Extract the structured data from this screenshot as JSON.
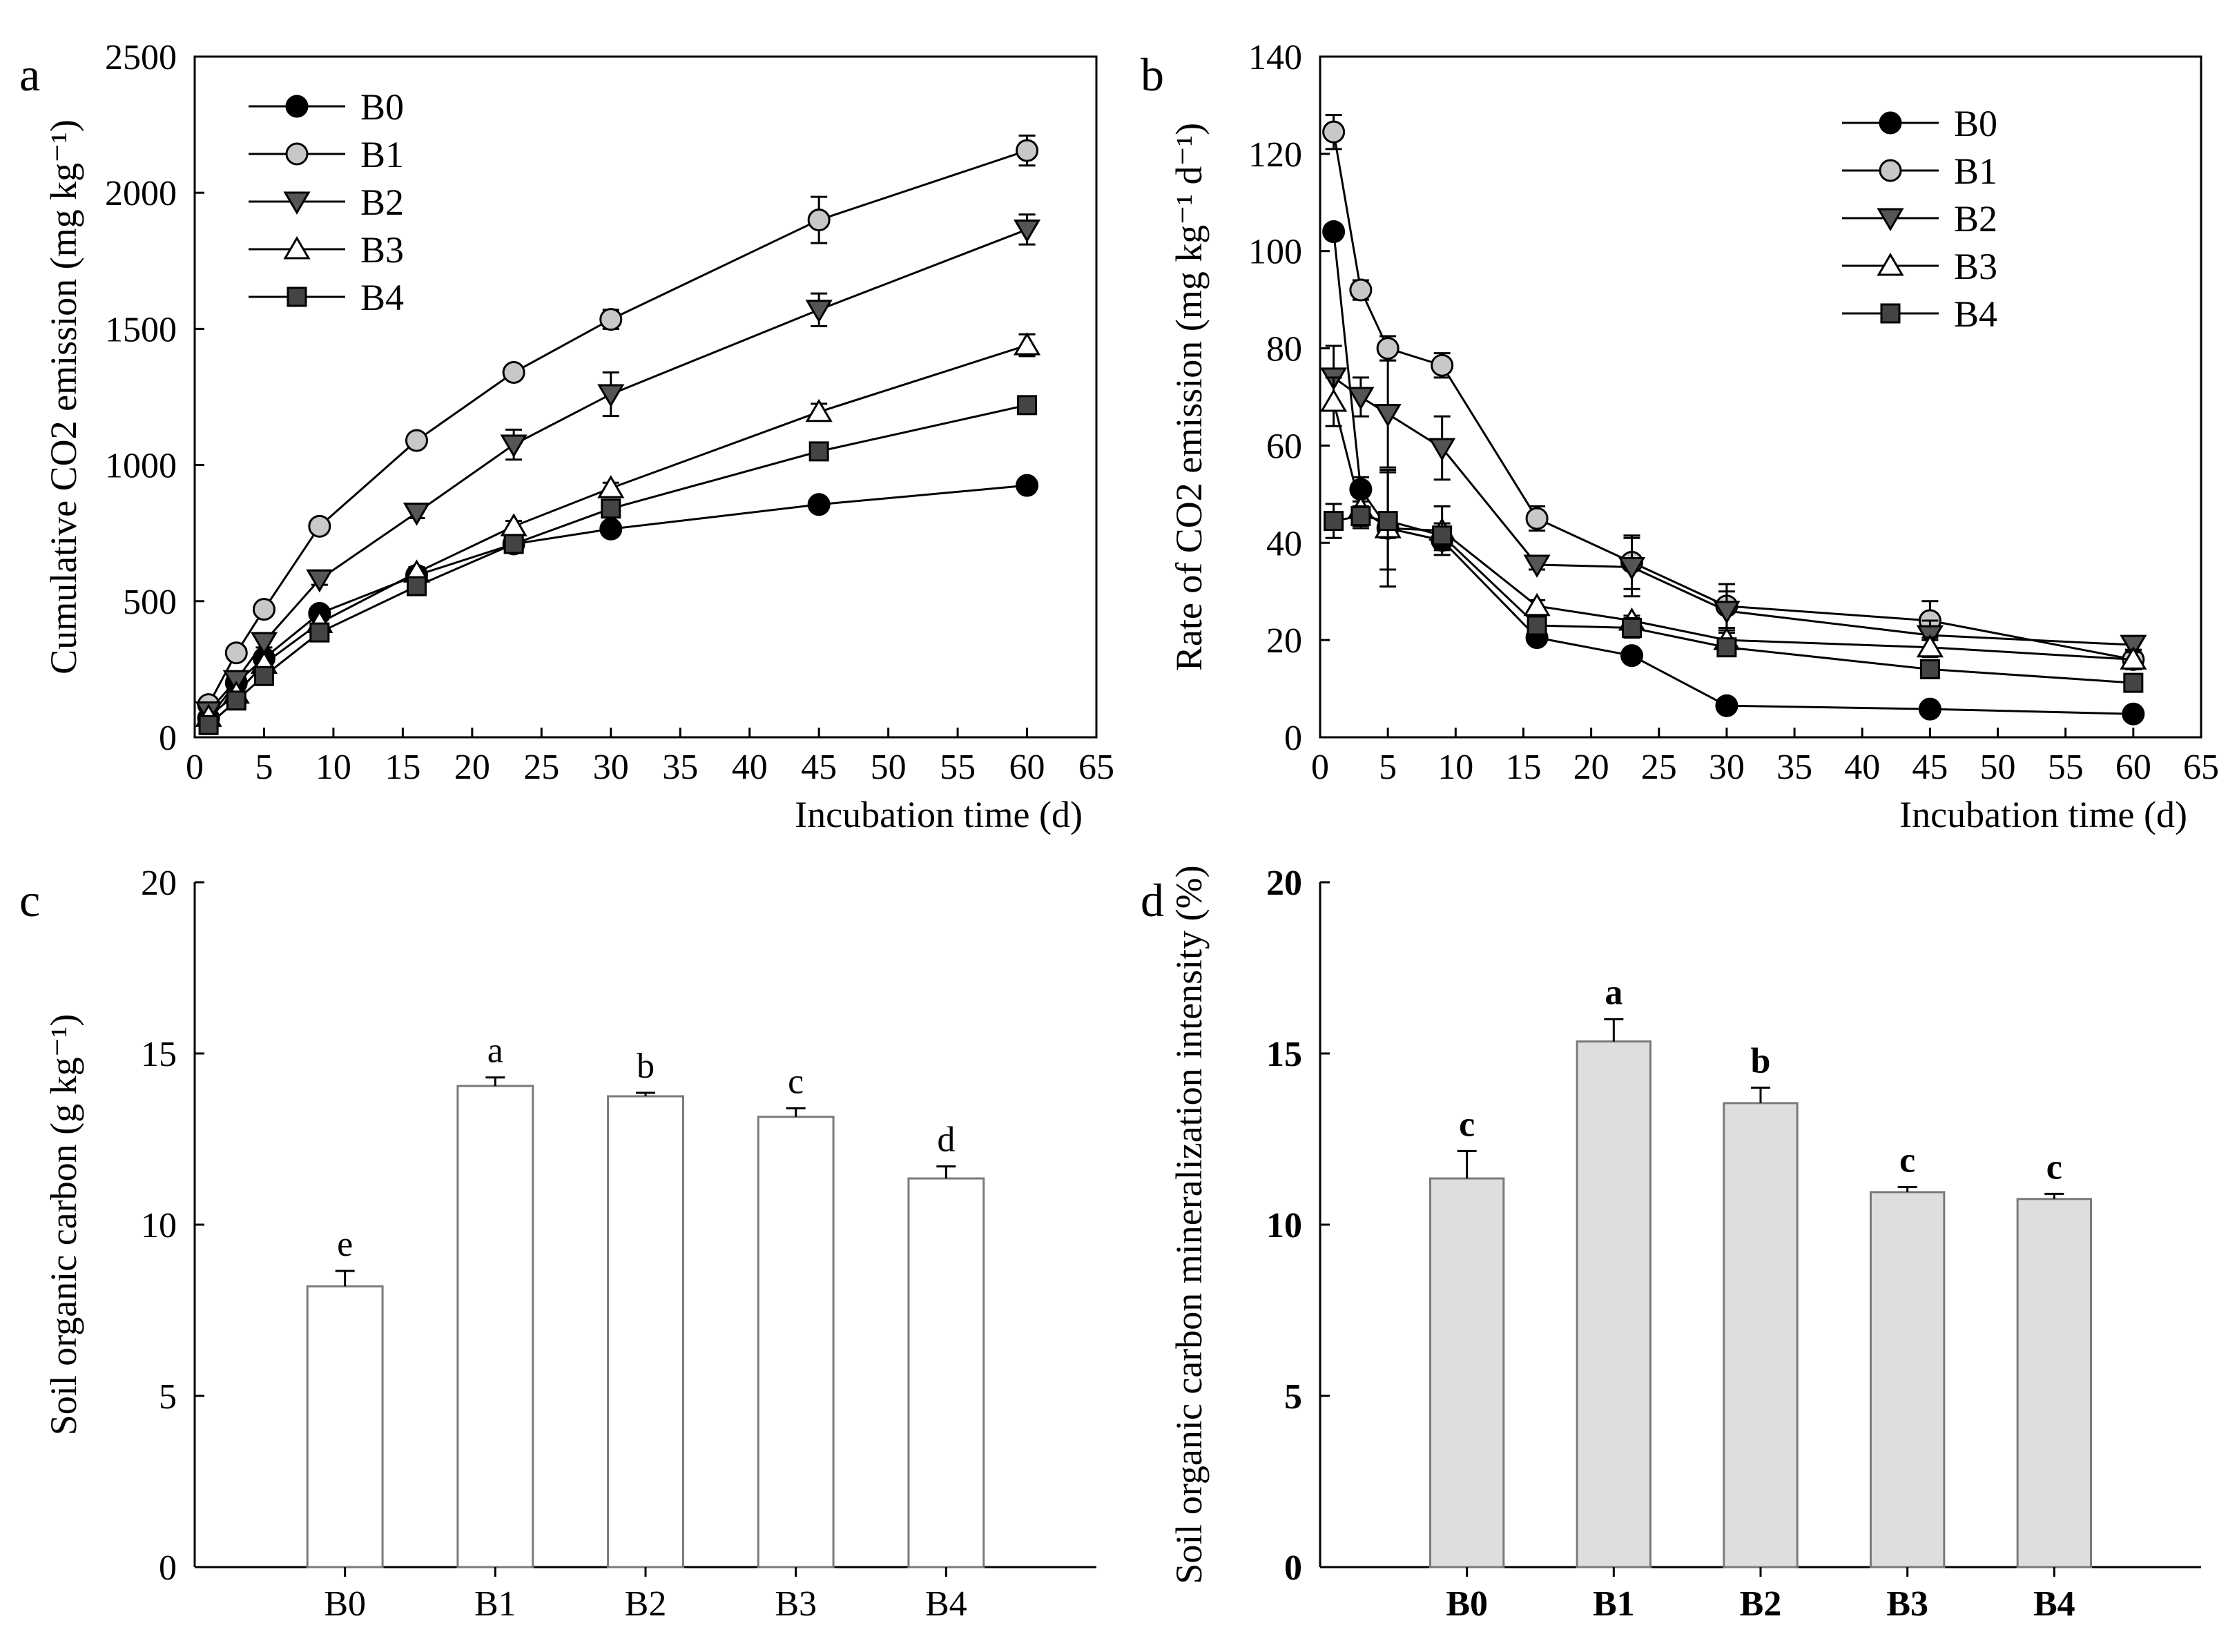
{
  "chart_data": [
    {
      "panel": "a",
      "type": "line",
      "ylabel": "Cumulative CO2 emission (mg kg⁻¹)",
      "xlabel": "Incubation time (d)",
      "xlim": [
        0,
        65
      ],
      "ylim": [
        0,
        2500
      ],
      "xticks": [
        0,
        5,
        10,
        15,
        20,
        25,
        30,
        35,
        40,
        45,
        50,
        55,
        60,
        65
      ],
      "yticks": [
        0,
        500,
        1000,
        1500,
        2000,
        2500
      ],
      "legend_position": "top-left",
      "x": [
        1,
        3,
        5,
        9,
        16,
        23,
        30,
        45,
        60
      ],
      "series": [
        {
          "name": "B0",
          "marker": "circle",
          "fill": "#000000",
          "values": [
            70,
            200,
            290,
            455,
            595,
            710,
            765,
            855,
            925
          ],
          "errors": [
            10,
            15,
            15,
            20,
            20,
            25,
            20,
            20,
            20
          ]
        },
        {
          "name": "B1",
          "marker": "circle",
          "fill": "#c8c8c8",
          "values": [
            120,
            310,
            470,
            775,
            1090,
            1340,
            1535,
            1900,
            2155
          ],
          "errors": [
            15,
            15,
            20,
            25,
            20,
            20,
            35,
            85,
            55
          ]
        },
        {
          "name": "B2",
          "marker": "triangle-down",
          "fill": "#555555",
          "values": [
            95,
            210,
            350,
            580,
            825,
            1075,
            1260,
            1570,
            1865
          ],
          "errors": [
            10,
            20,
            20,
            20,
            20,
            55,
            80,
            60,
            55
          ]
        },
        {
          "name": "B3",
          "marker": "triangle-up",
          "fill": "#ffffff",
          "values": [
            75,
            160,
            270,
            420,
            605,
            775,
            915,
            1195,
            1440
          ],
          "errors": [
            10,
            15,
            20,
            20,
            20,
            20,
            20,
            30,
            40
          ]
        },
        {
          "name": "B4",
          "marker": "square",
          "fill": "#444444",
          "values": [
            45,
            135,
            225,
            385,
            555,
            710,
            840,
            1050,
            1220
          ],
          "errors": [
            10,
            15,
            20,
            20,
            20,
            20,
            20,
            20,
            20
          ]
        }
      ]
    },
    {
      "panel": "b",
      "type": "line",
      "ylabel": "Rate of CO2 emission (mg kg⁻¹ d⁻¹)",
      "xlabel": "Incubation time (d)",
      "xlim": [
        0,
        65
      ],
      "ylim": [
        0,
        140
      ],
      "xticks": [
        0,
        5,
        10,
        15,
        20,
        25,
        30,
        35,
        40,
        45,
        50,
        55,
        60,
        65
      ],
      "yticks": [
        0,
        20,
        40,
        60,
        80,
        100,
        120,
        140
      ],
      "legend_position": "top-right",
      "x": [
        1,
        3,
        5,
        9,
        16,
        23,
        30,
        45,
        60
      ],
      "series": [
        {
          "name": "B0",
          "marker": "circle",
          "fill": "#000000",
          "values": [
            104,
            51,
            43,
            40.5,
            20.5,
            16.8,
            6.5,
            5.8,
            4.8
          ],
          "errors": [
            1.5,
            2.5,
            2,
            2,
            1.2,
            1,
            1,
            0.8,
            0.6
          ]
        },
        {
          "name": "B1",
          "marker": "circle",
          "fill": "#c8c8c8",
          "values": [
            124.5,
            92,
            80,
            76.5,
            45,
            36,
            27,
            24,
            16
          ],
          "errors": [
            3.5,
            2,
            2.5,
            2.5,
            2.5,
            5.5,
            4.5,
            4,
            2
          ]
        },
        {
          "name": "B2",
          "marker": "triangle-down",
          "fill": "#555555",
          "values": [
            74,
            70,
            66.5,
            59.5,
            35.5,
            35,
            26,
            21,
            19
          ],
          "errors": [
            6.5,
            4,
            11,
            6.5,
            1,
            6,
            4,
            3,
            1.5
          ]
        },
        {
          "name": "B3",
          "marker": "triangle-up",
          "fill": "#ffffff",
          "values": [
            69,
            47,
            43,
            42.5,
            27,
            24,
            20,
            18.5,
            16
          ],
          "errors": [
            5,
            4,
            12,
            5,
            1.2,
            1,
            1.5,
            2,
            2
          ]
        },
        {
          "name": "B4",
          "marker": "square",
          "fill": "#444444",
          "values": [
            44.5,
            45.5,
            44.5,
            41.5,
            23,
            22.5,
            18.5,
            14,
            11.2
          ],
          "errors": [
            3.5,
            2,
            10,
            2.5,
            2,
            2,
            1.5,
            1.2,
            1
          ]
        }
      ]
    },
    {
      "panel": "c",
      "type": "bar",
      "ylabel": "Soil organic carbon (g kg⁻¹)",
      "xlabel": "",
      "ylim": [
        0,
        20
      ],
      "yticks": [
        0,
        5,
        10,
        15,
        20
      ],
      "bar_fill": "#ffffff",
      "bold_ticks": false,
      "categories": [
        "B0",
        "B1",
        "B2",
        "B3",
        "B4"
      ],
      "values": [
        8.2,
        14.05,
        13.75,
        13.15,
        11.35
      ],
      "errors": [
        0.45,
        0.25,
        0.1,
        0.25,
        0.35
      ],
      "letters": [
        "e",
        "a",
        "b",
        "c",
        "d"
      ]
    },
    {
      "panel": "d",
      "type": "bar",
      "ylabel": "Soil organic carbon mineralization intensity (%)",
      "xlabel": "",
      "ylim": [
        0,
        20
      ],
      "yticks": [
        0,
        5,
        10,
        15,
        20
      ],
      "bar_fill": "#dedede",
      "bold_ticks": true,
      "categories": [
        "B0",
        "B1",
        "B2",
        "B3",
        "B4"
      ],
      "values": [
        11.35,
        15.35,
        13.55,
        10.95,
        10.75
      ],
      "errors": [
        0.8,
        0.65,
        0.45,
        0.15,
        0.15
      ],
      "letters": [
        "c",
        "a",
        "b",
        "c",
        "c"
      ]
    }
  ]
}
